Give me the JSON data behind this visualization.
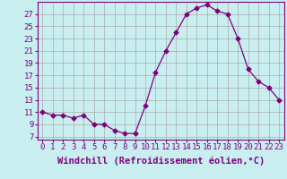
{
  "x": [
    0,
    1,
    2,
    3,
    4,
    5,
    6,
    7,
    8,
    9,
    10,
    11,
    12,
    13,
    14,
    15,
    16,
    17,
    18,
    19,
    20,
    21,
    22,
    23
  ],
  "y": [
    11,
    10.5,
    10.5,
    10,
    10.5,
    9,
    9,
    8,
    7.5,
    7.5,
    12,
    17.5,
    21,
    24,
    27,
    28,
    28.5,
    27.5,
    27,
    23,
    18,
    16,
    15,
    13
  ],
  "line_color": "#800080",
  "marker": "D",
  "marker_size": 2.5,
  "bg_color": "#c8eef0",
  "grid_color": "#aaaaaa",
  "xlabel": "Windchill (Refroidissement éolien,°C)",
  "xlabel_color": "#800080",
  "ylabel_ticks": [
    7,
    9,
    11,
    13,
    15,
    17,
    19,
    21,
    23,
    25,
    27
  ],
  "xlim": [
    -0.5,
    23.5
  ],
  "ylim": [
    6.5,
    29
  ],
  "xticks": [
    0,
    1,
    2,
    3,
    4,
    5,
    6,
    7,
    8,
    9,
    10,
    11,
    12,
    13,
    14,
    15,
    16,
    17,
    18,
    19,
    20,
    21,
    22,
    23
  ],
  "tick_label_color": "#800080",
  "tick_label_fontsize": 6.5,
  "xlabel_fontsize": 7.5
}
